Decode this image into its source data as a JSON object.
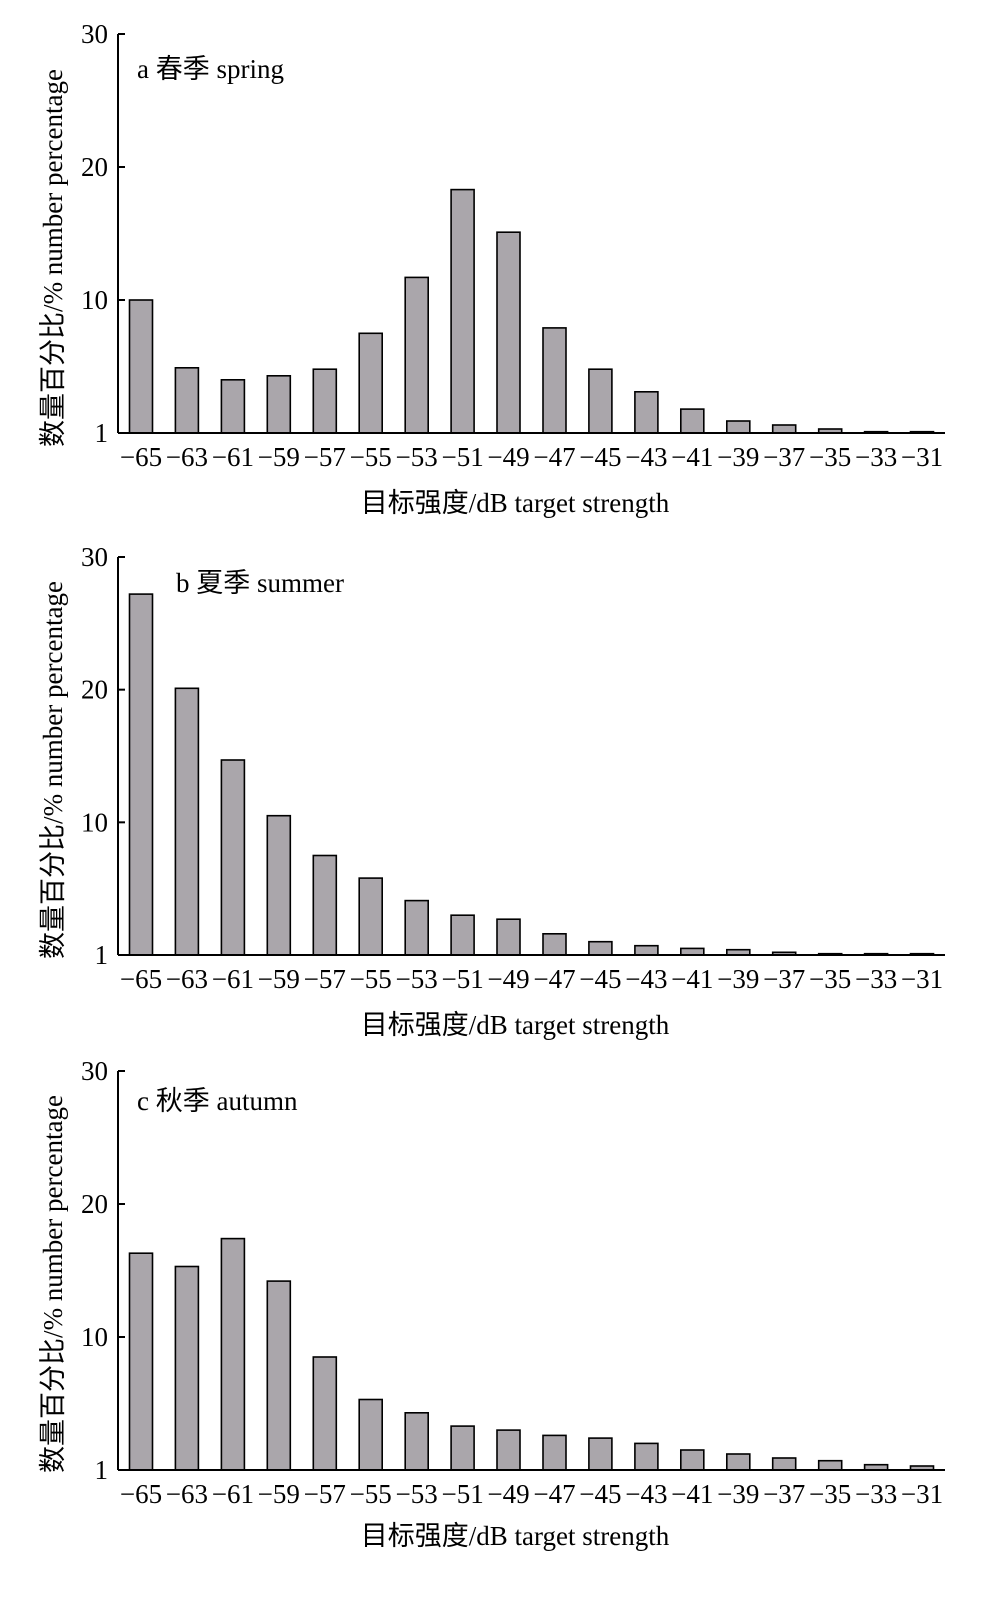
{
  "chart_data": [
    {
      "type": "bar",
      "panel_label": "a 春季 spring",
      "categories": [
        "−65",
        "−63",
        "−61",
        "−59",
        "−57",
        "−55",
        "−53",
        "−51",
        "−49",
        "−47",
        "−45",
        "−43",
        "−41",
        "−39",
        "−37",
        "−35",
        "−33",
        "−31"
      ],
      "values": [
        10.0,
        4.9,
        4.0,
        4.3,
        4.8,
        7.5,
        11.7,
        18.3,
        15.1,
        7.9,
        4.8,
        3.1,
        1.8,
        0.9,
        0.6,
        0.3,
        0.1,
        0.1
      ],
      "yticks": [
        "1",
        "10",
        "20",
        "30"
      ],
      "ylim": [
        0,
        30
      ],
      "xlabel": "目标强度/dB target strength",
      "ylabel": "数量百分比/% number percentage",
      "bar_color": "#aaa6ab"
    },
    {
      "type": "bar",
      "panel_label": "b 夏季 summer",
      "categories": [
        "−65",
        "−63",
        "−61",
        "−59",
        "−57",
        "−55",
        "−53",
        "−51",
        "−49",
        "−47",
        "−45",
        "−43",
        "−41",
        "−39",
        "−37",
        "−35",
        "−33",
        "−31"
      ],
      "values": [
        27.2,
        20.1,
        14.7,
        10.5,
        7.5,
        5.8,
        4.1,
        3.0,
        2.7,
        1.6,
        1.0,
        0.7,
        0.5,
        0.4,
        0.2,
        0.1,
        0.1,
        0.1
      ],
      "yticks": [
        "1",
        "10",
        "20",
        "30"
      ],
      "ylim": [
        0,
        30
      ],
      "xlabel": "目标强度/dB target strength",
      "ylabel": "数量百分比/% number percentage",
      "bar_color": "#aaa6ab"
    },
    {
      "type": "bar",
      "panel_label": "c 秋季 autumn",
      "categories": [
        "−65",
        "−63",
        "−61",
        "−59",
        "−57",
        "−55",
        "−53",
        "−51",
        "−49",
        "−47",
        "−45",
        "−43",
        "−41",
        "−39",
        "−37",
        "−35",
        "−33",
        "−31"
      ],
      "values": [
        16.3,
        15.3,
        17.4,
        14.2,
        8.5,
        5.3,
        4.3,
        3.3,
        3.0,
        2.6,
        2.4,
        2.0,
        1.5,
        1.2,
        0.9,
        0.7,
        0.4,
        0.3
      ],
      "yticks": [
        "1",
        "10",
        "20",
        "30"
      ],
      "ylim": [
        0,
        30
      ],
      "xlabel": "目标强度/dB target strength",
      "ylabel": "数量百分比/% number percentage",
      "bar_color": "#aaa6ab"
    }
  ]
}
